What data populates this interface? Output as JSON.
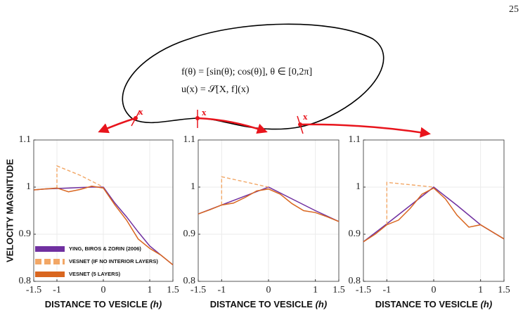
{
  "page_number": "25",
  "diagram": {
    "equations": [
      "f(θ) = [sin(θ); cos(θ)],    θ ∈ [0,2π]",
      "u(x) = 𝒮[X, f](x)"
    ],
    "point_label": "x"
  },
  "chart_data": [
    {
      "type": "line",
      "ylabel": "VELOCITY MAGNITUDE",
      "xlabel": "DISTANCE TO VESICLE",
      "xlabel_unit": "(h)",
      "xlim": [
        -1.5,
        1.5
      ],
      "ylim": [
        0.8,
        1.1
      ],
      "xticks": [
        -1.5,
        -1,
        0,
        1,
        1.5
      ],
      "yticks": [
        0.8,
        0.9,
        1,
        1.1
      ],
      "grid": true,
      "legend": "lower left",
      "series": [
        {
          "name": "YING, BIROS & ZORIN (2006)",
          "color": "#7030a0",
          "style": "solid",
          "x": [
            -1.5,
            -1.25,
            -1,
            -0.75,
            -0.5,
            -0.25,
            0,
            0.25,
            0.5,
            0.75,
            1,
            1.25,
            1.5
          ],
          "values": [
            0.994,
            0.996,
            0.997,
            0.998,
            0.999,
            1.0,
            1.0,
            0.966,
            0.937,
            0.905,
            0.875,
            0.855,
            0.835
          ]
        },
        {
          "name": "VESNET (IF NO INTERIOR LAYERS)",
          "color": "#f2a766",
          "style": "dashed",
          "x": [
            -1,
            -1,
            -0.5,
            0
          ],
          "values": [
            0.997,
            1.045,
            1.025,
            1.0
          ]
        },
        {
          "name": "VESNET (5 LAYERS)",
          "color": "#d9661f",
          "style": "solid",
          "x": [
            -1.5,
            -1.25,
            -1,
            -0.75,
            -0.5,
            -0.25,
            0,
            0.25,
            0.5,
            0.75,
            1,
            1.25,
            1.5
          ],
          "values": [
            0.994,
            0.996,
            0.998,
            0.99,
            0.995,
            1.002,
            0.998,
            0.962,
            0.93,
            0.89,
            0.87,
            0.855,
            0.835
          ]
        }
      ]
    },
    {
      "type": "line",
      "xlabel": "DISTANCE TO VESICLE",
      "xlabel_unit": "(h)",
      "xlim": [
        -1.5,
        1.5
      ],
      "ylim": [
        0.8,
        1.1
      ],
      "xticks": [
        -1.5,
        -1,
        0,
        1,
        1.5
      ],
      "yticks": [
        0.8,
        0.9,
        1,
        1.1
      ],
      "grid": true,
      "series": [
        {
          "color": "#7030a0",
          "style": "solid",
          "x": [
            -1.5,
            -1,
            -0.5,
            0,
            0.5,
            1,
            1.5
          ],
          "values": [
            0.943,
            0.962,
            0.981,
            1.0,
            0.975,
            0.95,
            0.927
          ]
        },
        {
          "color": "#f2a766",
          "style": "dashed",
          "x": [
            -1,
            -1,
            0
          ],
          "values": [
            0.962,
            1.022,
            1.0
          ]
        },
        {
          "color": "#d9661f",
          "style": "solid",
          "x": [
            -1.5,
            -1.25,
            -1,
            -0.75,
            -0.5,
            -0.25,
            0,
            0.25,
            0.5,
            0.75,
            1,
            1.25,
            1.5
          ],
          "values": [
            0.943,
            0.952,
            0.962,
            0.966,
            0.978,
            0.992,
            0.996,
            0.985,
            0.965,
            0.95,
            0.946,
            0.937,
            0.927
          ]
        }
      ]
    },
    {
      "type": "line",
      "xlabel": "DISTANCE TO VESICLE",
      "xlabel_unit": "(h)",
      "xlim": [
        -1.5,
        1.5
      ],
      "ylim": [
        0.8,
        1.1
      ],
      "xticks": [
        -1.5,
        -1,
        0,
        1,
        1.5
      ],
      "yticks": [
        0.8,
        0.9,
        1,
        1.1
      ],
      "grid": true,
      "series": [
        {
          "color": "#7030a0",
          "style": "solid",
          "x": [
            -1.5,
            -1,
            -0.5,
            0,
            0.5,
            1,
            1.5
          ],
          "values": [
            0.884,
            0.922,
            0.961,
            1.0,
            0.961,
            0.92,
            0.89
          ]
        },
        {
          "color": "#f2a766",
          "style": "dashed",
          "x": [
            -1,
            -1,
            0
          ],
          "values": [
            0.92,
            1.01,
            1.0
          ]
        },
        {
          "color": "#d9661f",
          "style": "solid",
          "x": [
            -1.5,
            -1.25,
            -1,
            -0.75,
            -0.5,
            -0.25,
            0,
            0.25,
            0.5,
            0.75,
            1,
            1.25,
            1.5
          ],
          "values": [
            0.884,
            0.9,
            0.92,
            0.93,
            0.955,
            0.985,
            0.998,
            0.975,
            0.94,
            0.915,
            0.92,
            0.905,
            0.89
          ]
        }
      ]
    }
  ]
}
